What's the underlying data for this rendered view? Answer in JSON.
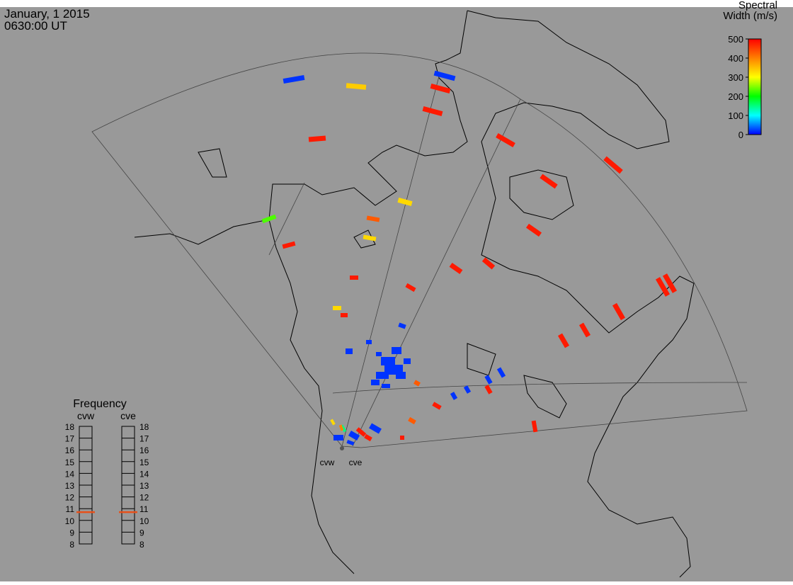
{
  "timestamp": {
    "date": "January, 1 2015",
    "time": "0630:00 UT"
  },
  "colorbar": {
    "title_lines": [
      "Spectral",
      "Width (m/s)"
    ],
    "range": [
      0,
      500
    ],
    "ticks": [
      0,
      100,
      200,
      300,
      400,
      500
    ]
  },
  "frequency_panel": {
    "title": "Frequency",
    "range": [
      8,
      18
    ],
    "ticks": [
      8,
      9,
      10,
      11,
      12,
      13,
      14,
      15,
      16,
      17,
      18
    ],
    "radars": [
      {
        "name": "cvw",
        "value": 10.7
      },
      {
        "name": "cve",
        "value": 10.7
      }
    ]
  },
  "stations": [
    "cvw",
    "cve"
  ],
  "echoes": [
    20,
    340,
    20,
    480,
    480,
    480,
    480,
    480,
    480,
    330,
    430,
    230,
    330,
    480,
    480,
    480,
    480,
    480,
    480,
    480,
    480,
    480,
    480,
    480,
    20,
    330,
    480,
    20,
    20,
    20,
    20,
    20,
    20,
    20,
    20,
    20,
    20,
    20,
    430,
    20,
    20,
    480,
    20,
    20,
    480,
    430,
    480,
    480,
    20,
    20,
    480,
    330,
    150,
    480,
    20,
    20,
    400
  ]
}
